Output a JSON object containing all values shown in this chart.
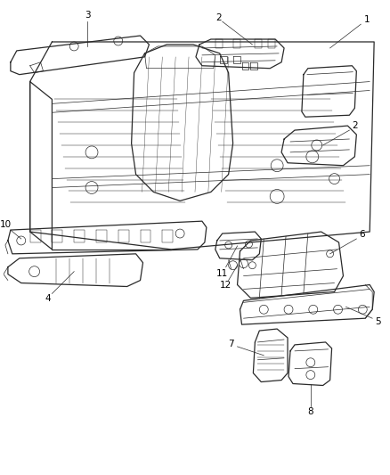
{
  "background_color": "#ffffff",
  "line_color": "#2a2a2a",
  "label_color": "#000000",
  "fig_width": 4.38,
  "fig_height": 5.33,
  "dpi": 100,
  "lw_main": 0.9,
  "lw_thin": 0.5,
  "lw_rib": 0.35,
  "label_fontsize": 7.5
}
